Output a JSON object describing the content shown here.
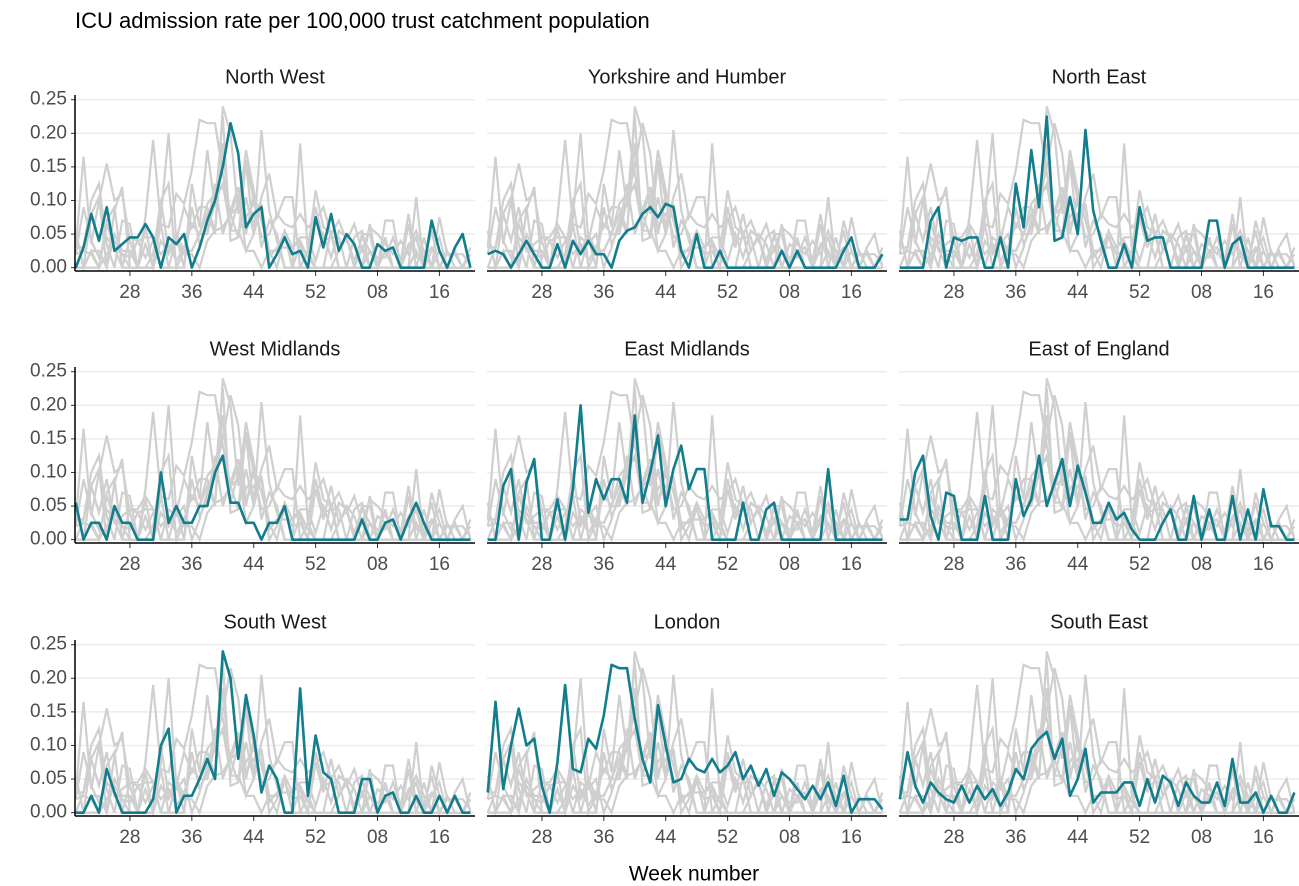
{
  "chart_data": {
    "type": "line",
    "title": "ICU admission rate per 100,000 trust catchment population",
    "xlabel": "Week number",
    "highlight_color": "#127d8c",
    "context_color": "#cfcfcf",
    "grid": true,
    "x": [
      21,
      22,
      23,
      24,
      25,
      26,
      27,
      28,
      29,
      30,
      31,
      32,
      33,
      34,
      35,
      36,
      37,
      38,
      39,
      40,
      41,
      42,
      43,
      44,
      45,
      46,
      47,
      48,
      49,
      50,
      51,
      52,
      53,
      54,
      55,
      56,
      57,
      58,
      59,
      60,
      61,
      62,
      63,
      64,
      65,
      66,
      67,
      68,
      69,
      70,
      71,
      72
    ],
    "xlim": [
      20.9,
      72.6
    ],
    "xticks": [
      28,
      36,
      44,
      52,
      {
        "value": 60,
        "label": "08"
      },
      {
        "value": 68,
        "label": "16"
      }
    ],
    "ylim": [
      -0.005,
      0.257
    ],
    "yticks": [
      {
        "value": 0,
        "label": "0.00"
      },
      {
        "value": 0.05,
        "label": "0.05"
      },
      {
        "value": 0.1,
        "label": "0.10"
      },
      {
        "value": 0.15,
        "label": "0.15"
      },
      {
        "value": 0.2,
        "label": "0.20"
      },
      {
        "value": 0.25,
        "label": "0.25"
      }
    ],
    "series": [
      {
        "name": "North West",
        "values": [
          0,
          0.03,
          0.08,
          0.04,
          0.09,
          0.025,
          0.035,
          0.045,
          0.045,
          0.065,
          0.045,
          0,
          0.045,
          0.035,
          0.05,
          0,
          0.03,
          0.07,
          0.1,
          0.15,
          0.215,
          0.17,
          0.06,
          0.08,
          0.09,
          0,
          0.02,
          0.045,
          0.02,
          0.025,
          0,
          0.075,
          0.03,
          0.08,
          0.025,
          0.05,
          0.035,
          0,
          0,
          0.035,
          0.025,
          0.03,
          0,
          0,
          0,
          0,
          0.07,
          0.025,
          0,
          0.03,
          0.05,
          0
        ]
      },
      {
        "name": "Yorkshire and Humber",
        "values": [
          0.02,
          0.025,
          0.02,
          0,
          0.02,
          0.04,
          0.02,
          0,
          0,
          0.035,
          0,
          0.04,
          0.02,
          0.04,
          0.02,
          0.02,
          0,
          0.04,
          0.055,
          0.06,
          0.08,
          0.09,
          0.075,
          0.095,
          0.09,
          0.025,
          0,
          0.05,
          0,
          0,
          0.025,
          0,
          0,
          0,
          0,
          0,
          0,
          0,
          0.025,
          0,
          0.025,
          0,
          0,
          0,
          0,
          0,
          0.025,
          0.045,
          0,
          0,
          0,
          0.02
        ]
      },
      {
        "name": "North East",
        "values": [
          0,
          0,
          0,
          0,
          0.07,
          0.09,
          0,
          0.045,
          0.04,
          0.045,
          0.045,
          0,
          0,
          0.045,
          0,
          0.125,
          0.06,
          0.175,
          0.09,
          0.225,
          0.04,
          0.045,
          0.105,
          0.05,
          0.205,
          0.085,
          0.04,
          0,
          0,
          0.035,
          0,
          0.09,
          0.04,
          0.045,
          0.045,
          0,
          0,
          0,
          0,
          0,
          0.07,
          0.07,
          0,
          0.035,
          0.045,
          0,
          0,
          0,
          0,
          0,
          0,
          0
        ]
      },
      {
        "name": "West Midlands",
        "values": [
          0.055,
          0,
          0.025,
          0.025,
          0,
          0.05,
          0.025,
          0.025,
          0,
          0,
          0,
          0.1,
          0.025,
          0.05,
          0.025,
          0.025,
          0.05,
          0.05,
          0.1,
          0.125,
          0.055,
          0.055,
          0.025,
          0.025,
          0,
          0.025,
          0.025,
          0.05,
          0,
          0,
          0,
          0,
          0,
          0,
          0,
          0,
          0,
          0.03,
          0,
          0,
          0.025,
          0.03,
          0,
          0.03,
          0.055,
          0.025,
          0,
          0,
          0,
          0,
          0,
          0
        ]
      },
      {
        "name": "East Midlands",
        "values": [
          0,
          0,
          0.08,
          0.105,
          0,
          0.085,
          0.12,
          0,
          0,
          0.06,
          0,
          0.075,
          0.2,
          0.04,
          0.09,
          0.06,
          0.09,
          0.09,
          0.055,
          0.185,
          0.055,
          0.1,
          0.155,
          0.05,
          0.105,
          0.14,
          0.075,
          0.105,
          0.105,
          0,
          0,
          0,
          0,
          0.055,
          0,
          0,
          0.045,
          0.055,
          0,
          0,
          0,
          0,
          0,
          0,
          0.105,
          0,
          0,
          0,
          0,
          0,
          0,
          0
        ]
      },
      {
        "name": "East of England",
        "values": [
          0.03,
          0.03,
          0.1,
          0.125,
          0.035,
          0,
          0.07,
          0.065,
          0,
          0,
          0,
          0.065,
          0,
          0,
          0,
          0.09,
          0.035,
          0.06,
          0.125,
          0.05,
          0.085,
          0.12,
          0.05,
          0.11,
          0.07,
          0.025,
          0.025,
          0.055,
          0.03,
          0.04,
          0.015,
          0,
          0,
          0,
          0.025,
          0.045,
          0,
          0,
          0.065,
          0,
          0.045,
          0,
          0,
          0.065,
          0,
          0.045,
          0,
          0.075,
          0.02,
          0.02,
          0,
          0
        ]
      },
      {
        "name": "South West",
        "values": [
          0,
          0,
          0.025,
          0,
          0.065,
          0.03,
          0,
          0,
          0,
          0,
          0.02,
          0.1,
          0.125,
          0,
          0.025,
          0.025,
          0.05,
          0.08,
          0.05,
          0.24,
          0.2,
          0.08,
          0.175,
          0.115,
          0.03,
          0.07,
          0.05,
          0,
          0,
          0.185,
          0.025,
          0.115,
          0.06,
          0.05,
          0,
          0,
          0,
          0.05,
          0.05,
          0,
          0.025,
          0.03,
          0,
          0,
          0.025,
          0,
          0,
          0.025,
          0,
          0.025,
          0,
          0
        ]
      },
      {
        "name": "London",
        "values": [
          0.03,
          0.165,
          0.035,
          0.1,
          0.155,
          0.1,
          0.11,
          0.04,
          0,
          0.075,
          0.19,
          0.065,
          0.06,
          0.11,
          0.095,
          0.145,
          0.22,
          0.215,
          0.215,
          0.14,
          0.08,
          0.045,
          0.16,
          0.1,
          0.045,
          0.05,
          0.08,
          0.065,
          0.06,
          0.08,
          0.06,
          0.07,
          0.09,
          0.05,
          0.07,
          0.04,
          0.065,
          0.025,
          0.06,
          0.05,
          0.035,
          0.02,
          0.04,
          0.02,
          0.045,
          0.01,
          0.055,
          0,
          0.02,
          0.02,
          0.02,
          0.005
        ]
      },
      {
        "name": "South East",
        "values": [
          0.02,
          0.09,
          0.04,
          0.015,
          0.045,
          0.03,
          0.02,
          0.015,
          0.04,
          0.015,
          0.04,
          0.02,
          0.035,
          0.01,
          0.03,
          0.065,
          0.05,
          0.095,
          0.11,
          0.12,
          0.08,
          0.11,
          0.025,
          0.05,
          0.095,
          0.015,
          0.03,
          0.03,
          0.03,
          0.045,
          0.045,
          0.01,
          0.05,
          0.015,
          0.055,
          0.045,
          0.01,
          0.045,
          0.025,
          0.015,
          0.015,
          0.045,
          0.01,
          0.08,
          0.015,
          0.015,
          0.03,
          0,
          0.025,
          0,
          0,
          0.03
        ]
      }
    ]
  }
}
